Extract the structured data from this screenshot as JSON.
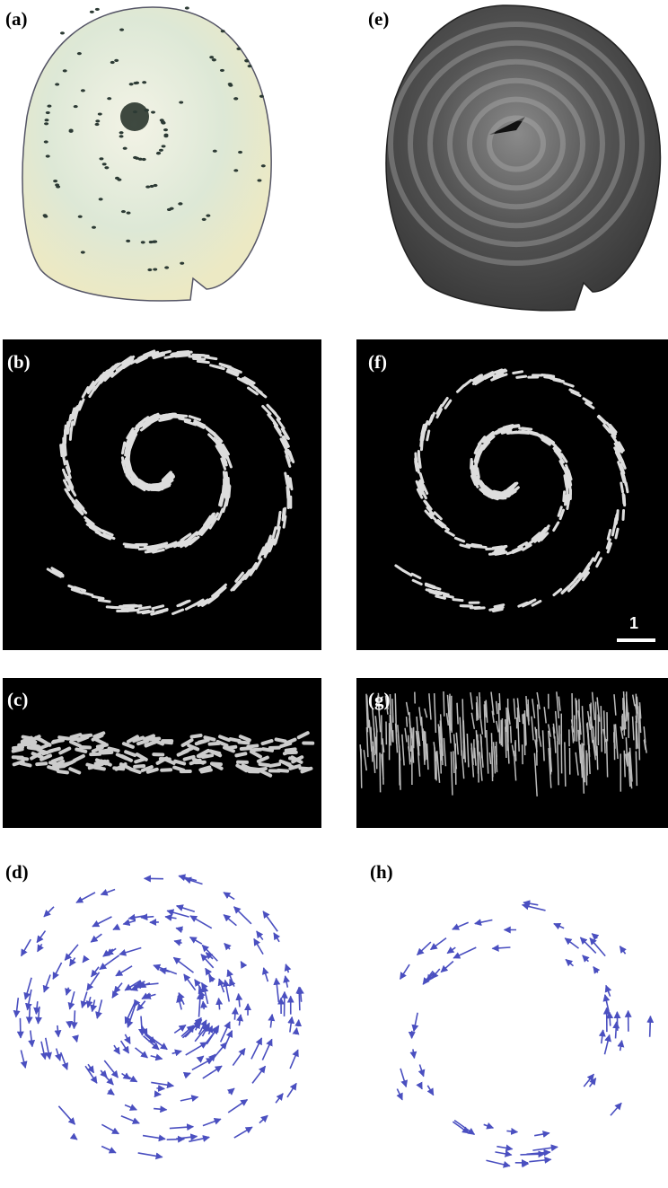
{
  "panels": [
    {
      "label": "(a)"
    },
    {
      "label": "(b)"
    },
    {
      "label": "(c)"
    },
    {
      "label": "(d)"
    },
    {
      "label": "(e)"
    },
    {
      "label": "(f)"
    },
    {
      "label": "(g)"
    },
    {
      "label": "(h)"
    }
  ],
  "scale_bar": {
    "label": "1"
  }
}
